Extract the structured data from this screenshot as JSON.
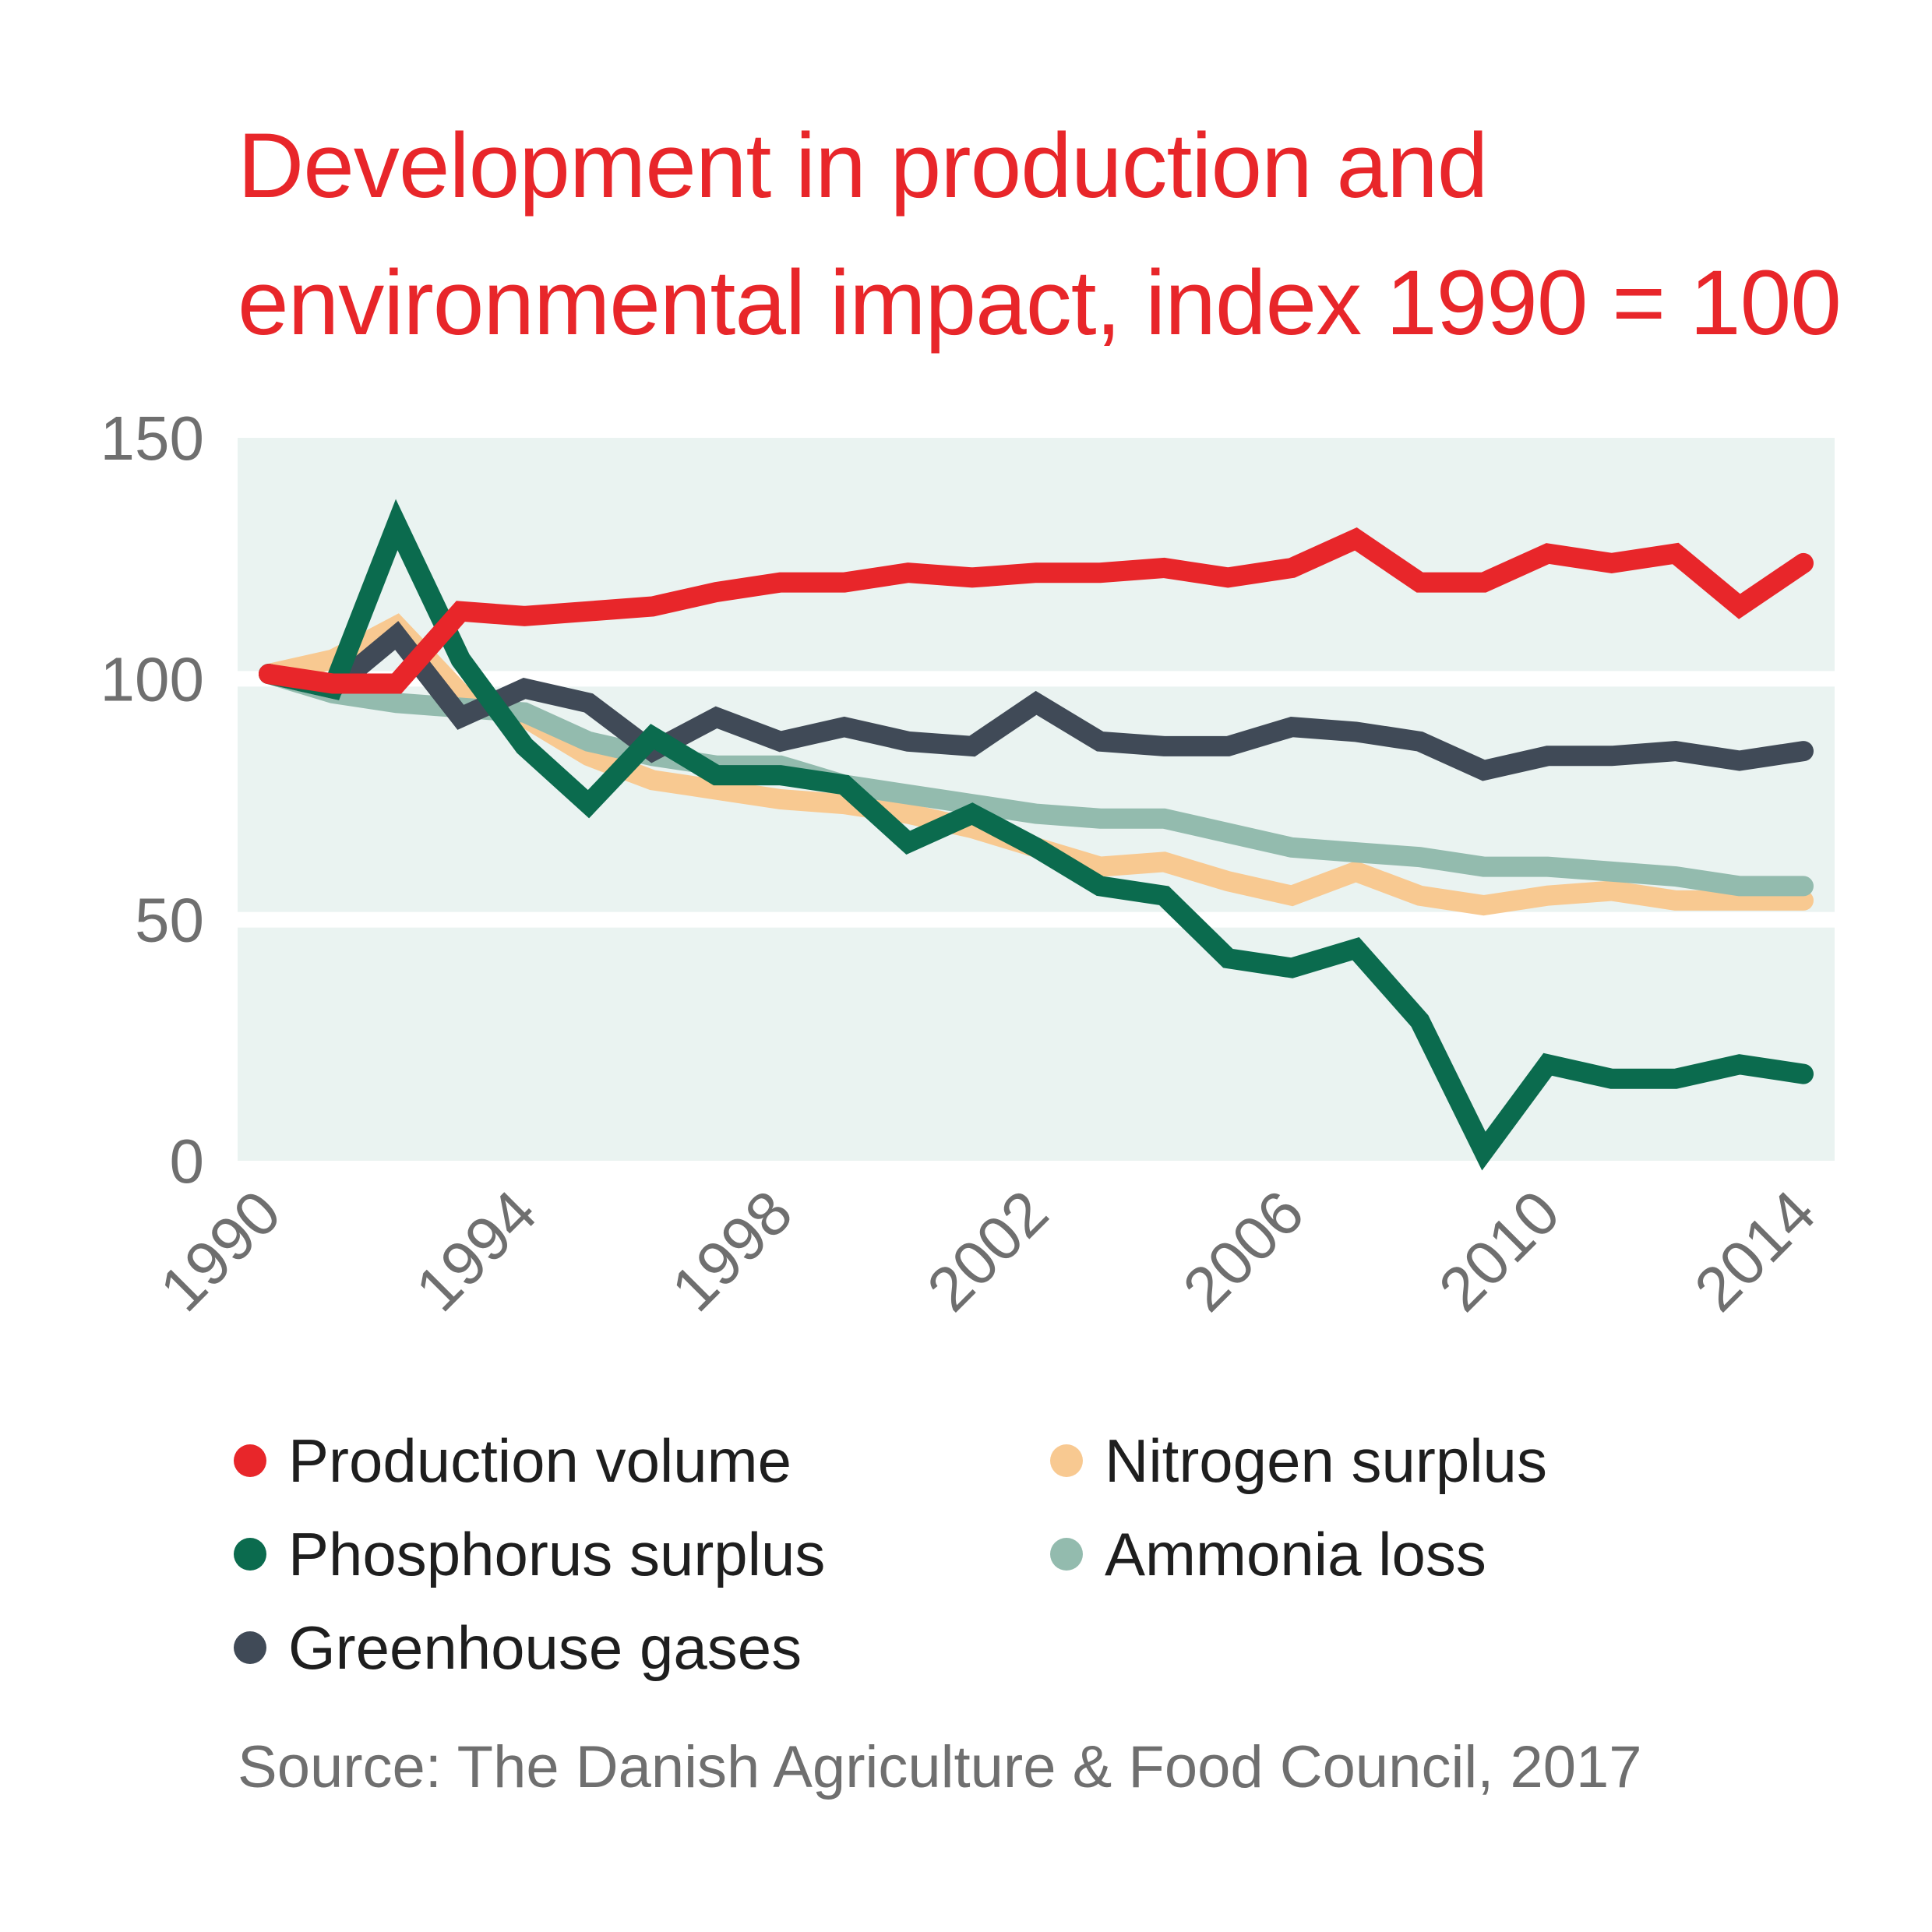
{
  "title": {
    "line1": "Development in production and",
    "line2": "environmental impact, index 1990 = 100"
  },
  "source": "Source: The Danish Agriculture & Food Council, 2017",
  "colors": {
    "background": "#ffffff",
    "plot_band": "#eaf3f1",
    "band_divider": "#ffffff",
    "axis_text": "#6f6f6f",
    "title": "#e8262a"
  },
  "legend": [
    {
      "label": "Production volume",
      "color": "#e8262a"
    },
    {
      "label": "Nitrogen surplus",
      "color": "#f8c991"
    },
    {
      "label": "Phosphorus surplus",
      "color": "#0b6b4e"
    },
    {
      "label": "Ammonia loss",
      "color": "#93bbae"
    },
    {
      "label": "Greenhouse gases",
      "color": "#404a57"
    }
  ],
  "chart_data": {
    "type": "line",
    "title": "Development in production and environmental impact, index 1990 = 100",
    "xlabel": "",
    "ylabel": "",
    "x": [
      1990,
      1991,
      1992,
      1993,
      1994,
      1995,
      1996,
      1997,
      1998,
      1999,
      2000,
      2001,
      2002,
      2003,
      2004,
      2005,
      2006,
      2007,
      2008,
      2009,
      2010,
      2011,
      2012,
      2013,
      2014
    ],
    "xlim": [
      1990,
      2014
    ],
    "x_ticks": [
      "1990",
      "1994",
      "1998",
      "2002",
      "2006",
      "2010",
      "2014"
    ],
    "ylim": [
      0,
      150
    ],
    "y_ticks": [
      "0",
      "50",
      "100",
      "150"
    ],
    "grid": "horizontal band separators at 50 and 100",
    "legend_position": "bottom",
    "series": [
      {
        "name": "Nitrogen surplus",
        "color": "#f8c991",
        "values": [
          101,
          104,
          111,
          97,
          92,
          84,
          79,
          77,
          75,
          74,
          72,
          69,
          65,
          61,
          62,
          58,
          55,
          60,
          55,
          53,
          55,
          56,
          54,
          54,
          54
        ]
      },
      {
        "name": "Ammonia loss",
        "color": "#93bbae",
        "values": [
          101,
          97,
          95,
          94,
          93,
          87,
          84,
          82,
          82,
          78,
          76,
          74,
          72,
          71,
          71,
          68,
          65,
          64,
          63,
          61,
          61,
          60,
          59,
          57,
          57
        ]
      },
      {
        "name": "Greenhouse gases",
        "color": "#404a57",
        "values": [
          101,
          98,
          109,
          92,
          98,
          95,
          85,
          92,
          87,
          90,
          87,
          86,
          95,
          87,
          86,
          86,
          90,
          89,
          87,
          81,
          84,
          84,
          85,
          83,
          85
        ]
      },
      {
        "name": "Phosphorus surplus",
        "color": "#0b6b4e",
        "values": [
          101,
          98,
          132,
          104,
          86,
          74,
          88,
          80,
          80,
          78,
          66,
          72,
          65,
          57,
          55,
          42,
          40,
          44,
          29,
          2,
          20,
          17,
          17,
          20,
          18
        ]
      },
      {
        "name": "Production volume",
        "color": "#e8262a",
        "values": [
          101,
          99,
          99,
          114,
          113,
          114,
          115,
          118,
          120,
          120,
          122,
          121,
          122,
          122,
          123,
          121,
          123,
          129,
          120,
          120,
          126,
          124,
          126,
          115,
          124
        ]
      }
    ]
  }
}
